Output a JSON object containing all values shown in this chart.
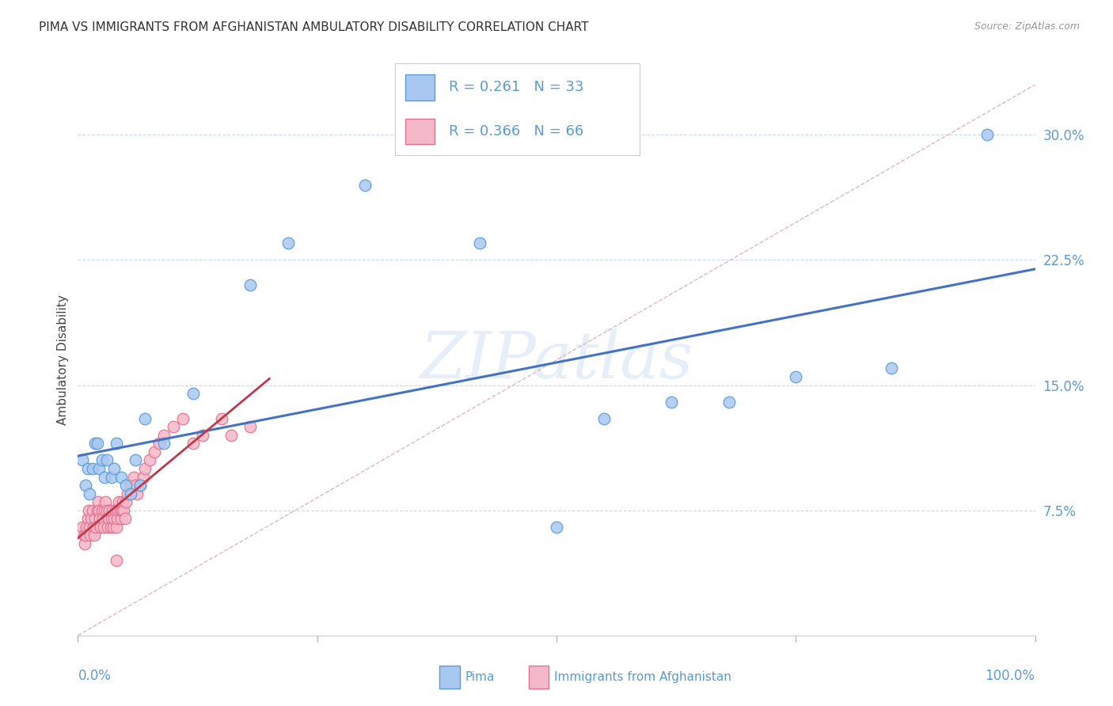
{
  "title": "PIMA VS IMMIGRANTS FROM AFGHANISTAN AMBULATORY DISABILITY CORRELATION CHART",
  "source": "Source: ZipAtlas.com",
  "ylabel": "Ambulatory Disability",
  "ytick_values": [
    0.075,
    0.15,
    0.225,
    0.3
  ],
  "xlim": [
    0.0,
    1.0
  ],
  "ylim": [
    0.0,
    0.33
  ],
  "pima_color": "#a8c8f0",
  "pima_edge_color": "#5b9bd5",
  "afghanistan_color": "#f5b8c8",
  "afghanistan_edge_color": "#e07090",
  "trend_pima_color": "#4472c4",
  "trend_afghanistan_color": "#c0394b",
  "diagonal_color": "#dbb0b8",
  "legend_R_pima": "R = 0.261",
  "legend_N_pima": "N = 33",
  "legend_R_afghanistan": "R = 0.366",
  "legend_N_afghanistan": "N = 66",
  "pima_x": [
    0.005,
    0.008,
    0.01,
    0.012,
    0.015,
    0.018,
    0.02,
    0.022,
    0.025,
    0.028,
    0.03,
    0.035,
    0.038,
    0.04,
    0.045,
    0.05,
    0.055,
    0.06,
    0.065,
    0.07,
    0.09,
    0.12,
    0.18,
    0.22,
    0.3,
    0.42,
    0.5,
    0.55,
    0.62,
    0.68,
    0.75,
    0.85,
    0.95
  ],
  "pima_y": [
    0.105,
    0.09,
    0.1,
    0.085,
    0.1,
    0.115,
    0.115,
    0.1,
    0.105,
    0.095,
    0.105,
    0.095,
    0.1,
    0.115,
    0.095,
    0.09,
    0.085,
    0.105,
    0.09,
    0.13,
    0.115,
    0.145,
    0.21,
    0.235,
    0.27,
    0.235,
    0.065,
    0.13,
    0.14,
    0.14,
    0.155,
    0.16,
    0.3
  ],
  "afghan_x": [
    0.005,
    0.006,
    0.007,
    0.008,
    0.009,
    0.01,
    0.011,
    0.012,
    0.013,
    0.014,
    0.015,
    0.016,
    0.017,
    0.018,
    0.019,
    0.02,
    0.021,
    0.022,
    0.023,
    0.024,
    0.025,
    0.026,
    0.027,
    0.028,
    0.029,
    0.03,
    0.031,
    0.032,
    0.033,
    0.034,
    0.035,
    0.036,
    0.037,
    0.038,
    0.039,
    0.04,
    0.041,
    0.042,
    0.043,
    0.044,
    0.045,
    0.046,
    0.047,
    0.048,
    0.049,
    0.05,
    0.052,
    0.055,
    0.058,
    0.06,
    0.062,
    0.065,
    0.068,
    0.07,
    0.075,
    0.08,
    0.085,
    0.09,
    0.1,
    0.11,
    0.12,
    0.13,
    0.15,
    0.16,
    0.18,
    0.04
  ],
  "afghan_y": [
    0.065,
    0.06,
    0.055,
    0.06,
    0.065,
    0.07,
    0.075,
    0.065,
    0.06,
    0.07,
    0.075,
    0.065,
    0.06,
    0.07,
    0.065,
    0.075,
    0.08,
    0.075,
    0.07,
    0.065,
    0.075,
    0.07,
    0.065,
    0.075,
    0.08,
    0.075,
    0.065,
    0.07,
    0.075,
    0.065,
    0.07,
    0.075,
    0.065,
    0.07,
    0.075,
    0.065,
    0.07,
    0.075,
    0.08,
    0.075,
    0.07,
    0.075,
    0.08,
    0.075,
    0.07,
    0.08,
    0.085,
    0.09,
    0.095,
    0.09,
    0.085,
    0.09,
    0.095,
    0.1,
    0.105,
    0.11,
    0.115,
    0.12,
    0.125,
    0.13,
    0.115,
    0.12,
    0.13,
    0.12,
    0.125,
    0.045
  ],
  "watermark": "ZIPatlas",
  "background_color": "#ffffff",
  "grid_color": "#c8d8e8",
  "marker_size": 110,
  "bottom_legend_labels": [
    "Pima",
    "Immigrants from Afghanistan"
  ]
}
